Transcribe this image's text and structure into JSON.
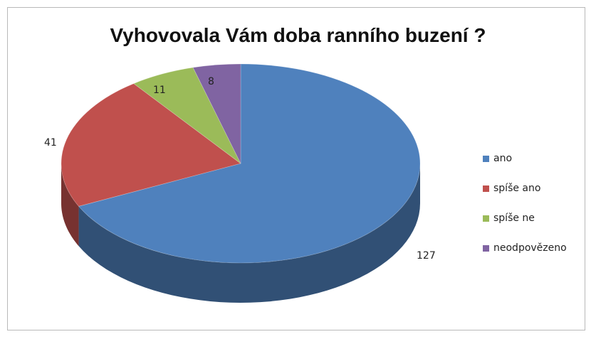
{
  "chart_data": {
    "type": "pie",
    "title": "Vyhovovala Vám doba ranního buzení ?",
    "categories": [
      "ano",
      "spíše ano",
      "spíše ne",
      "neodpovězeno"
    ],
    "values": [
      127,
      41,
      11,
      8
    ],
    "data_labels": [
      "127",
      "41",
      "11",
      "8"
    ],
    "colors": [
      "#4f81bd",
      "#c0504d",
      "#9bbb59",
      "#8064a2"
    ],
    "legend_position": "right",
    "three_d": true
  }
}
